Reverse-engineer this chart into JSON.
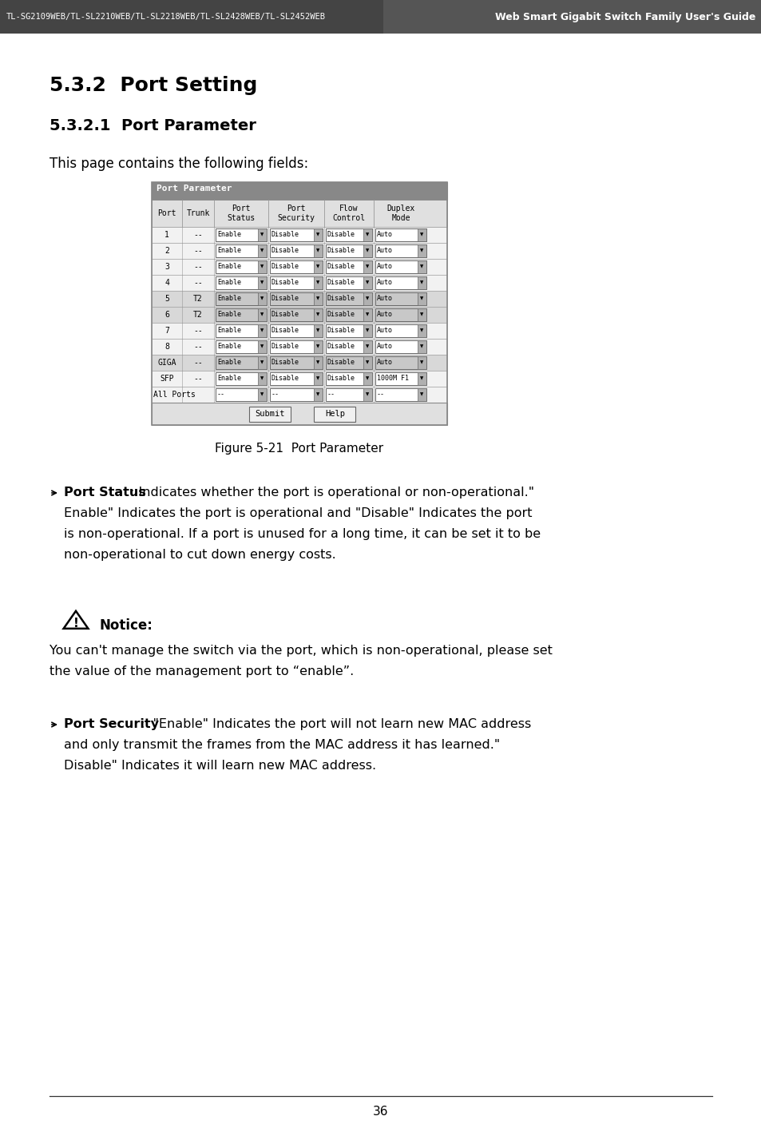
{
  "page_bg": "#ffffff",
  "header_bg": "#555555",
  "header_text_color": "#ffffff",
  "header_left": "TL-SG2109WEB/TL-SL2210WEB/TL-SL2218WEB/TL-SL2428WEB/TL-SL2452WEB",
  "header_right": "Web Smart Gigabit Switch Family User's Guide",
  "section_title": "5.3.2  Port Setting",
  "subsection_title": "5.3.2.1  Port Parameter",
  "intro_text": "This page contains the following fields:",
  "table_title": "Port Parameter",
  "table_col_headers": [
    "Port",
    "Trunk",
    "Port\nStatus",
    "Port\nSecurity",
    "Flow\nControl",
    "Duplex\nMode"
  ],
  "table_rows": [
    [
      "1",
      "--",
      "Enable",
      "Disable",
      "Disable",
      "Auto",
      false
    ],
    [
      "2",
      "--",
      "Enable",
      "Disable",
      "Disable",
      "Auto",
      false
    ],
    [
      "3",
      "--",
      "Enable",
      "Disable",
      "Disable",
      "Auto",
      false
    ],
    [
      "4",
      "--",
      "Enable",
      "Disable",
      "Disable",
      "Auto",
      false
    ],
    [
      "5",
      "T2",
      "Enable",
      "Disable",
      "Disable",
      "Auto",
      true
    ],
    [
      "6",
      "T2",
      "Enable",
      "Disable",
      "Disable",
      "Auto",
      true
    ],
    [
      "7",
      "--",
      "Enable",
      "Disable",
      "Disable",
      "Auto",
      false
    ],
    [
      "8",
      "--",
      "Enable",
      "Disable",
      "Disable",
      "Auto",
      false
    ],
    [
      "GIGA",
      "--",
      "Enable",
      "Disable",
      "Disable",
      "Auto",
      true
    ],
    [
      "SFP",
      "--",
      "Enable",
      "Disable",
      "Disable",
      "1000M F1",
      false
    ]
  ],
  "figure_caption": "Figure 5-21  Port Parameter",
  "ps_label": "Port Status",
  "ps_line1": ": Indicates whether the port is operational or non-operational.\"",
  "ps_line2": "Enable\" Indicates the port is operational and \"Disable\" Indicates the port",
  "ps_line3": "is non-operational. If a port is unused for a long time, it can be set it to be",
  "ps_line4": "non-operational to cut down energy costs.",
  "notice_title": "Notice:",
  "notice_line1": "You can't manage the switch via the port, which is non-operational, please set",
  "notice_line2": "the value of the management port to “enable”.",
  "psec_label": "Port Security",
  "psec_line1": ":  \"Enable\" Indicates the port will not learn new MAC address",
  "psec_line2": "and only transmit the frames from the MAC address it has learned.\"",
  "psec_line3": "Disable\" Indicates it will learn new MAC address.",
  "page_number": "36"
}
